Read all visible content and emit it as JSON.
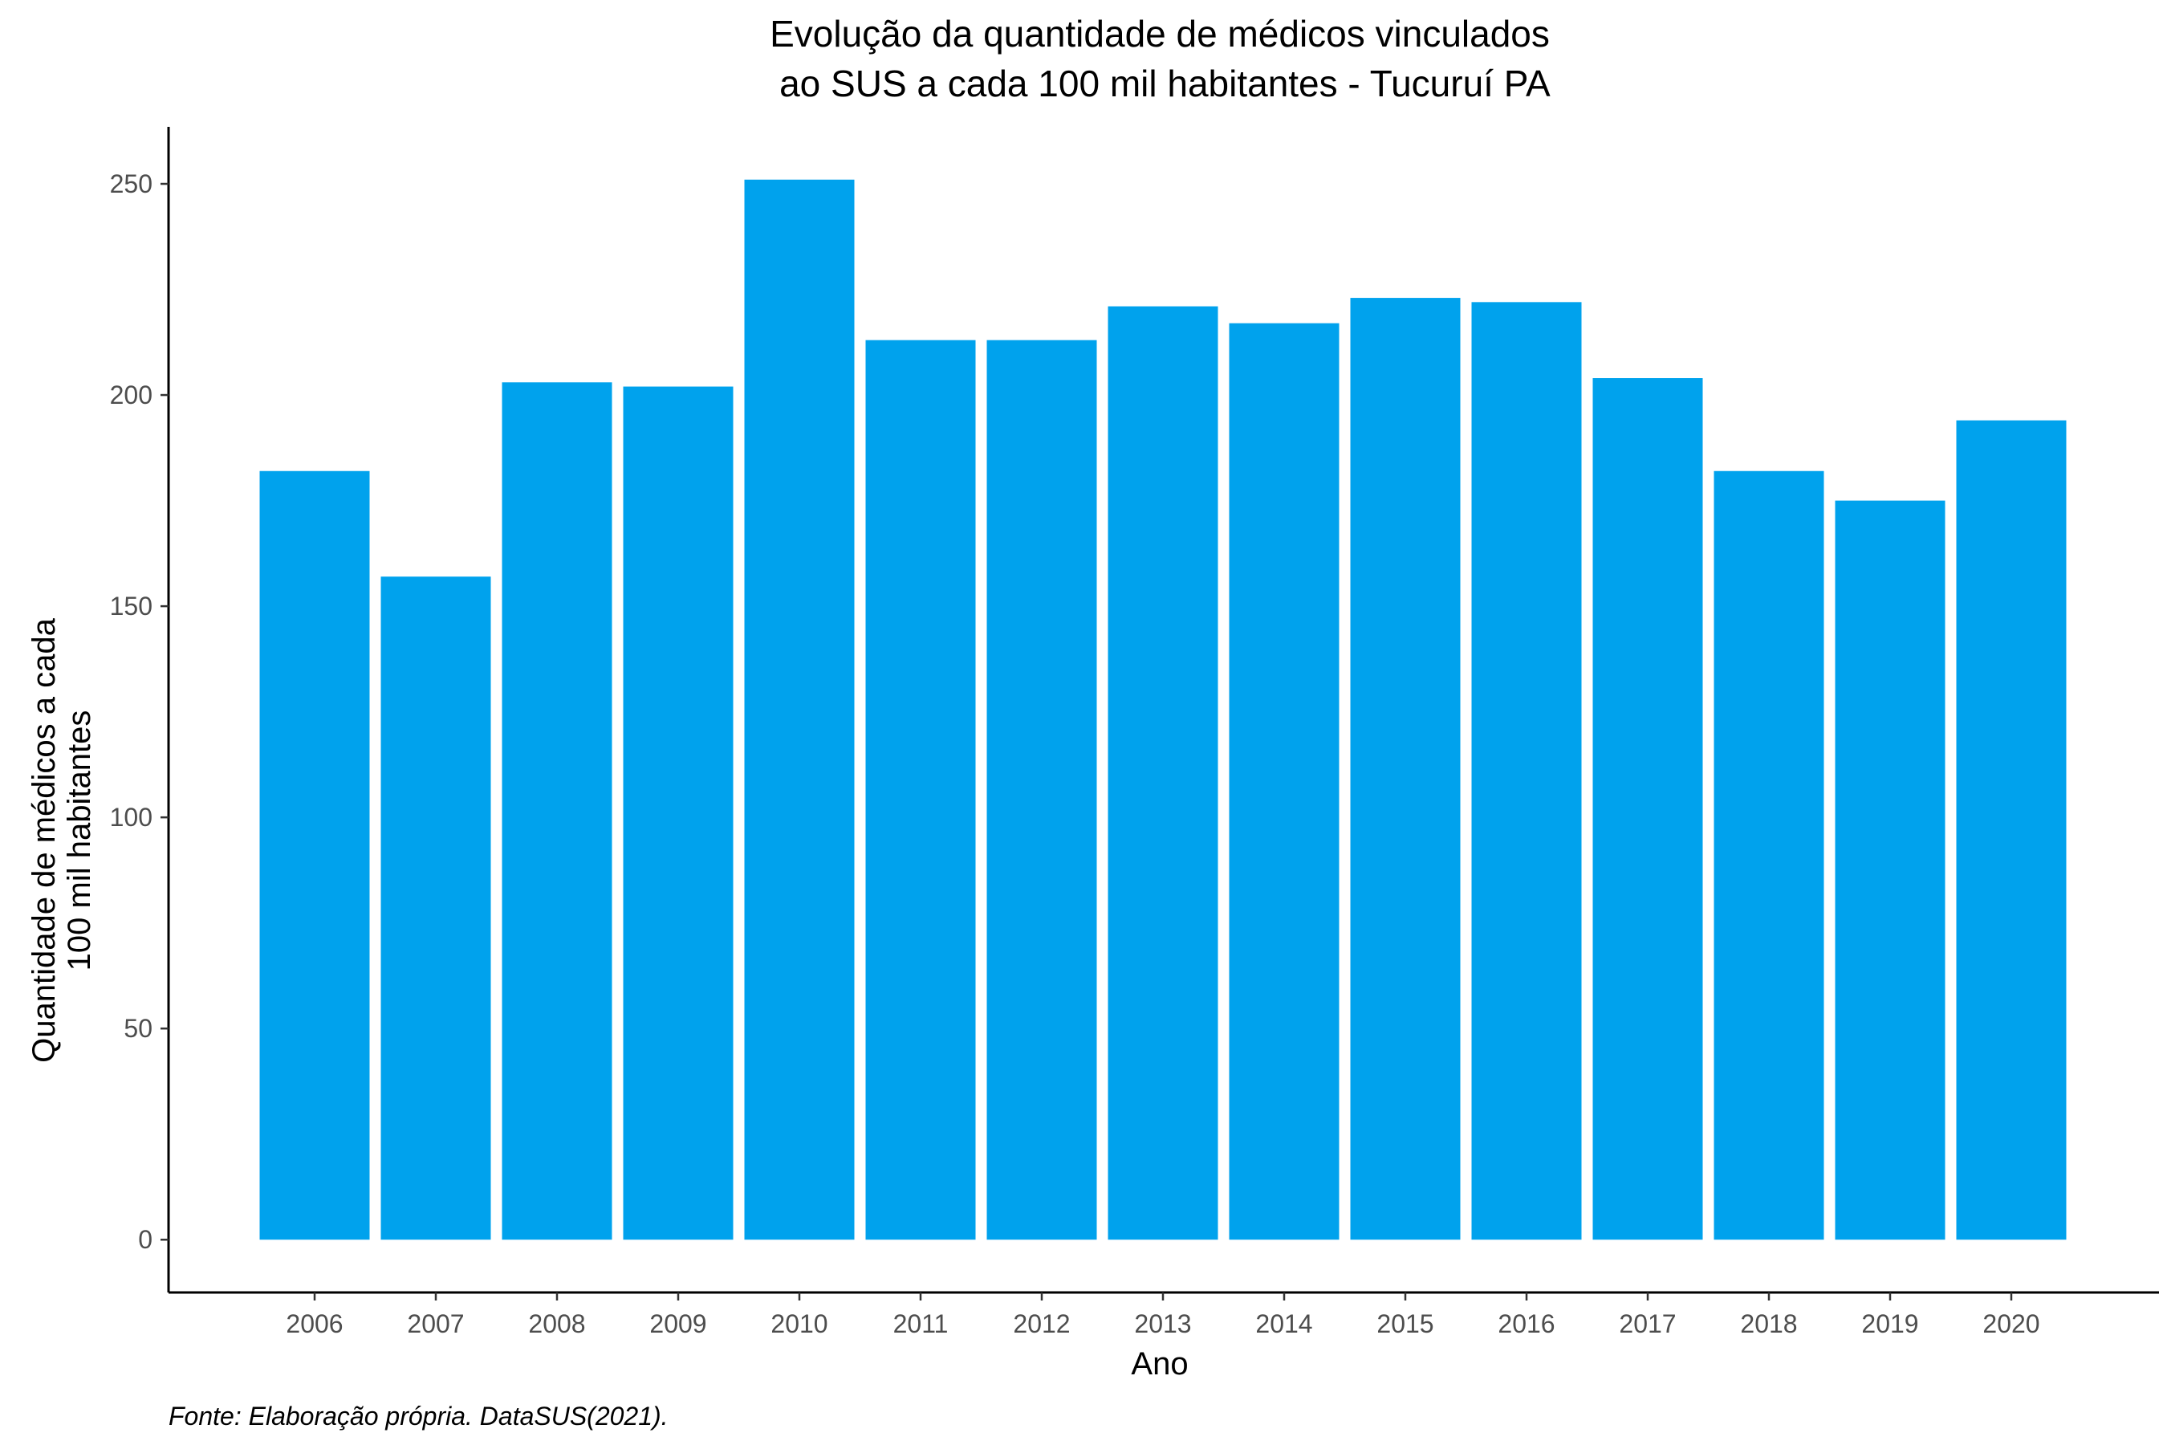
{
  "chart_data": {
    "type": "bar",
    "title_lines": [
      "Evolução da quantidade de médicos vinculados",
      " ao SUS a cada 100 mil habitantes - Tucuruí PA"
    ],
    "xlabel": "Ano",
    "ylabel_lines": [
      "Quantidade de médicos a cada",
      "100 mil habitantes"
    ],
    "caption": "Fonte: Elaboração própria. DataSUS(2021).",
    "categories": [
      "2006",
      "2007",
      "2008",
      "2009",
      "2010",
      "2011",
      "2012",
      "2013",
      "2014",
      "2015",
      "2016",
      "2017",
      "2018",
      "2019",
      "2020"
    ],
    "values": [
      182,
      157,
      203,
      202,
      251,
      213,
      213,
      221,
      217,
      223,
      222,
      204,
      182,
      175,
      194
    ],
    "yticks": [
      0,
      50,
      100,
      150,
      200,
      250
    ],
    "ylim": [
      -12.5,
      263.5
    ],
    "bar_color": "#00A2ED",
    "grid": false,
    "legend": "none"
  }
}
